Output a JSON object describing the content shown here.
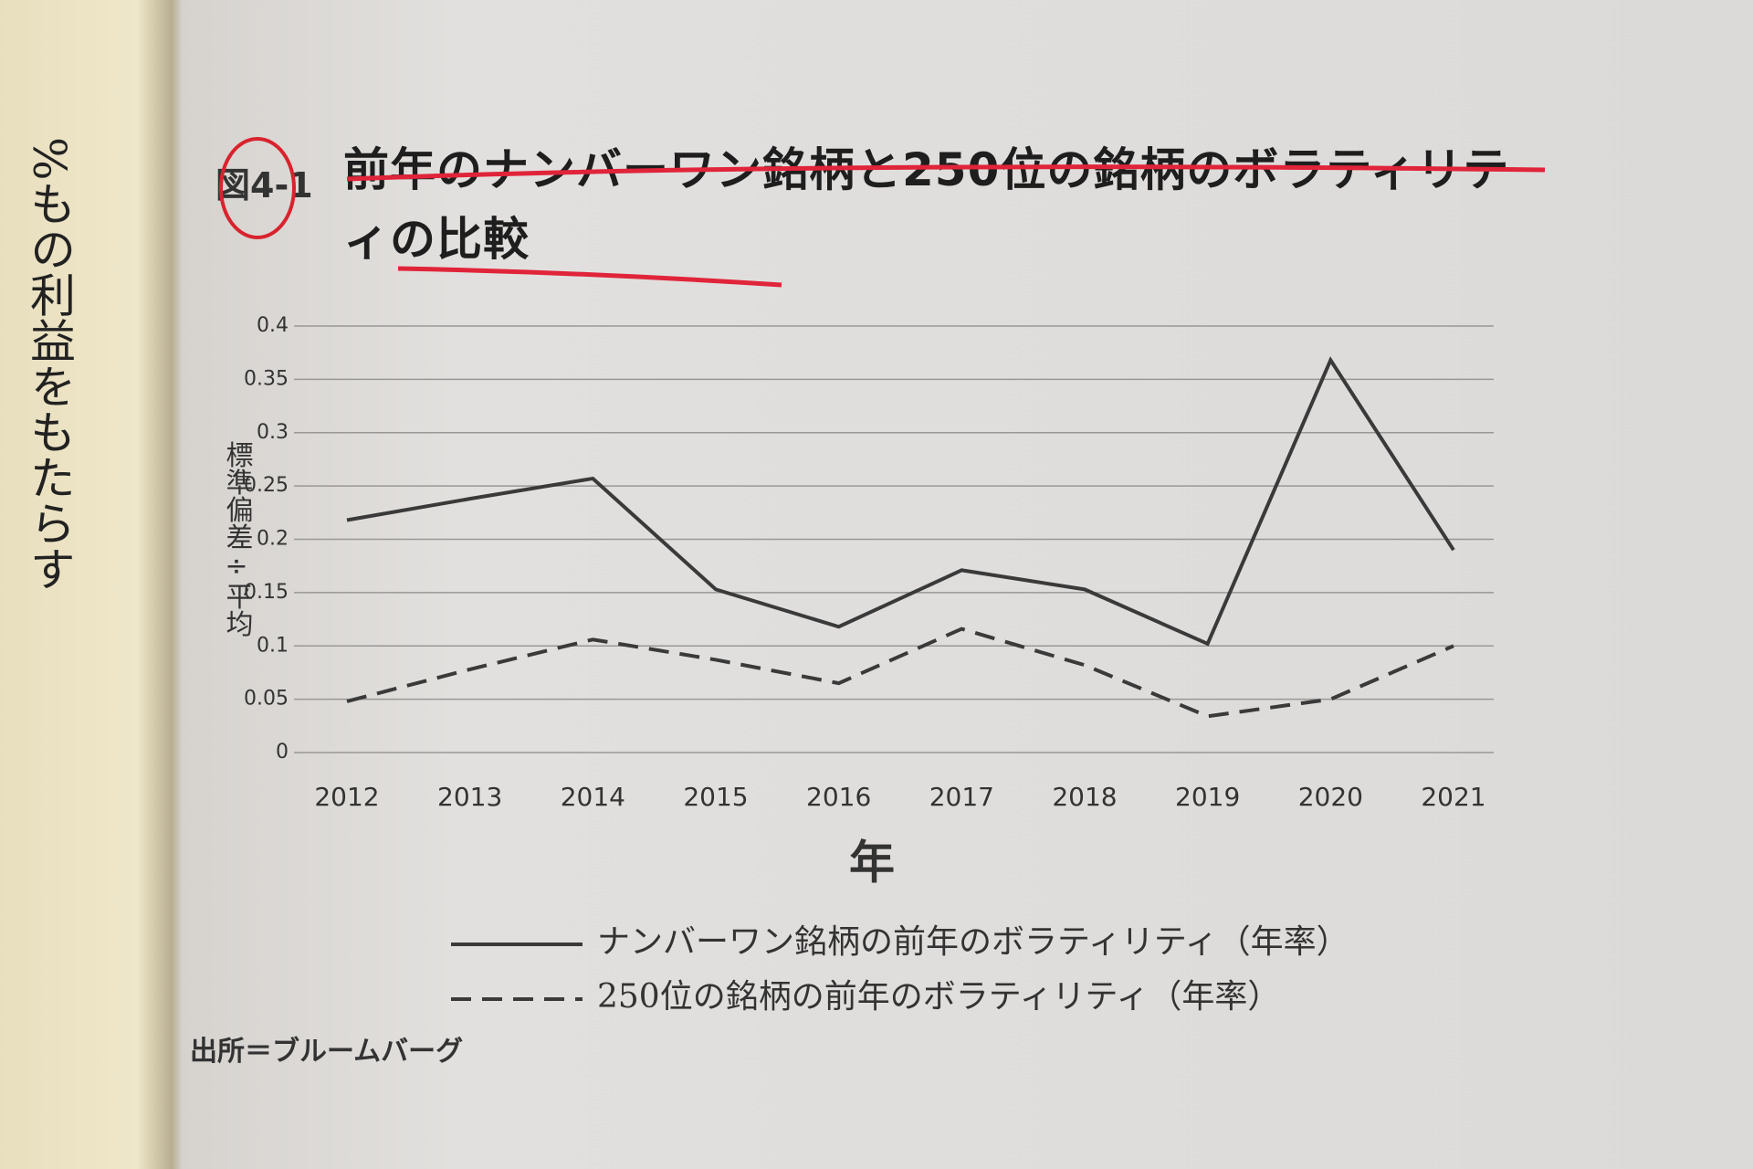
{
  "figure_label": "図4-1",
  "left_page_text": "%もの利益をもたらす",
  "source": "出所＝ブルームバーグ",
  "chart_data": {
    "type": "line",
    "title": "前年のナンバーワン銘柄と250位の銘柄のボラティリティの比較",
    "y_label": "標準偏差÷平均",
    "x_label": "年",
    "categories": [
      "2012",
      "2013",
      "2014",
      "2015",
      "2016",
      "2017",
      "2018",
      "2019",
      "2020",
      "2021"
    ],
    "series": [
      {
        "name": "ナンバーワン銘柄の前年のボラティリティ（年率）",
        "color": "#3a3a3a",
        "style": "solid",
        "values": [
          0.218,
          0.238,
          0.257,
          0.153,
          0.118,
          0.171,
          0.153,
          0.102,
          0.368,
          0.19
        ]
      },
      {
        "name": "250位の銘柄の前年のボラティリティ（年率）",
        "color": "#3a3a3a",
        "style": "dashed",
        "values": [
          0.048,
          0.078,
          0.106,
          0.087,
          0.065,
          0.116,
          0.082,
          0.034,
          0.05,
          0.1
        ]
      }
    ],
    "ylim": [
      0,
      0.4
    ],
    "yticks": [
      0,
      0.05,
      0.1,
      0.15,
      0.2,
      0.25,
      0.3,
      0.35,
      0.4
    ],
    "grid": true
  }
}
